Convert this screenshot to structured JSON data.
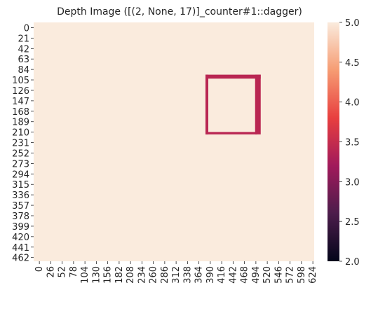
{
  "chart_data": {
    "type": "heatmap",
    "title": "Depth Image ([(2, None, 17)]_counter#1::dagger)",
    "xlabel": "",
    "ylabel": "",
    "x_tick_labels": [
      "0",
      "26",
      "52",
      "78",
      "104",
      "130",
      "156",
      "182",
      "208",
      "234",
      "260",
      "286",
      "312",
      "338",
      "364",
      "390",
      "416",
      "442",
      "468",
      "494",
      "520",
      "546",
      "572",
      "598",
      "624"
    ],
    "y_tick_labels": [
      "0",
      "21",
      "42",
      "63",
      "84",
      "105",
      "126",
      "147",
      "168",
      "189",
      "210",
      "231",
      "252",
      "273",
      "294",
      "315",
      "336",
      "357",
      "378",
      "399",
      "420",
      "441",
      "462"
    ],
    "x_range": [
      0,
      640
    ],
    "y_range": [
      0,
      480
    ],
    "background_value": 5.0,
    "regions": [
      {
        "x": [
          392,
          518
        ],
        "y": [
          105,
          225
        ],
        "value": 3.4,
        "shape": "rect-outline",
        "thickness_x": 8,
        "thickness_y": 8
      }
    ],
    "colorbar": {
      "vmin": 2.0,
      "vmax": 5.0,
      "tick_labels": [
        "2.0",
        "2.5",
        "3.0",
        "3.5",
        "4.0",
        "4.5",
        "5.0"
      ],
      "colormap": "rocket",
      "colors": [
        "#03051A",
        "#4C1D4B",
        "#A11A5B",
        "#E83F3F",
        "#F69C73",
        "#FAEBDD"
      ]
    },
    "grid": false
  }
}
